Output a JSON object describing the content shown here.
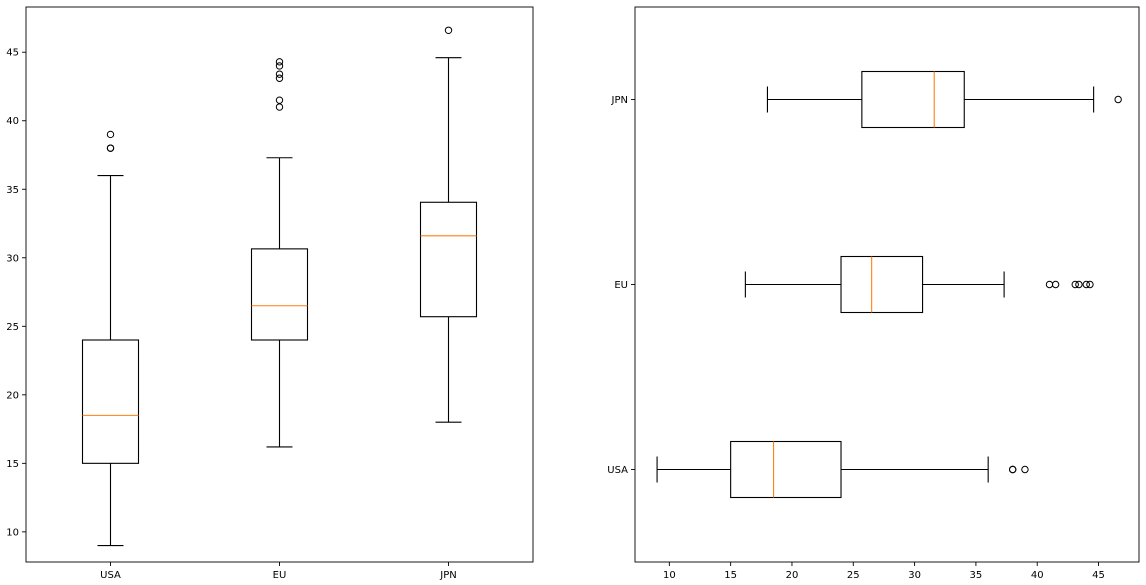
{
  "chart_data": [
    {
      "type": "boxplot",
      "orientation": "vertical",
      "categories": [
        "USA",
        "EU",
        "JPN"
      ],
      "boxes": [
        {
          "category": "USA",
          "whisker_low": 9.0,
          "q1": 15.0,
          "median": 18.5,
          "q3": 24.0,
          "whisker_high": 36.0,
          "outliers": [
            38.0,
            38.0,
            39.0
          ]
        },
        {
          "category": "EU",
          "whisker_low": 16.2,
          "q1": 24.0,
          "median": 26.5,
          "q3": 30.65,
          "whisker_high": 37.3,
          "outliers": [
            41.0,
            41.5,
            43.1,
            43.4,
            44.0,
            44.3
          ]
        },
        {
          "category": "JPN",
          "whisker_low": 18.0,
          "q1": 25.7,
          "median": 31.6,
          "q3": 34.05,
          "whisker_high": 44.6,
          "outliers": [
            46.6
          ]
        }
      ],
      "ylim": [
        7.8,
        48.3
      ],
      "yticks": [
        10,
        15,
        20,
        25,
        30,
        35,
        40,
        45
      ],
      "grid": false,
      "colors": {
        "box": "#000000",
        "median": "#ff7f0e"
      }
    },
    {
      "type": "boxplot",
      "orientation": "horizontal",
      "categories": [
        "USA",
        "EU",
        "JPN"
      ],
      "boxes": [
        {
          "category": "USA",
          "whisker_low": 9.0,
          "q1": 15.0,
          "median": 18.5,
          "q3": 24.0,
          "whisker_high": 36.0,
          "outliers": [
            38.0,
            38.0,
            39.0
          ]
        },
        {
          "category": "EU",
          "whisker_low": 16.2,
          "q1": 24.0,
          "median": 26.5,
          "q3": 30.65,
          "whisker_high": 37.3,
          "outliers": [
            41.0,
            41.5,
            43.1,
            43.4,
            44.0,
            44.3
          ]
        },
        {
          "category": "JPN",
          "whisker_low": 18.0,
          "q1": 25.7,
          "median": 31.6,
          "q3": 34.05,
          "whisker_high": 44.6,
          "outliers": [
            46.6
          ]
        }
      ],
      "xlim": [
        7.2,
        48.3
      ],
      "xticks": [
        10,
        15,
        20,
        25,
        30,
        35,
        40,
        45
      ],
      "grid": false,
      "colors": {
        "box": "#000000",
        "median": "#ff7f0e"
      }
    }
  ]
}
